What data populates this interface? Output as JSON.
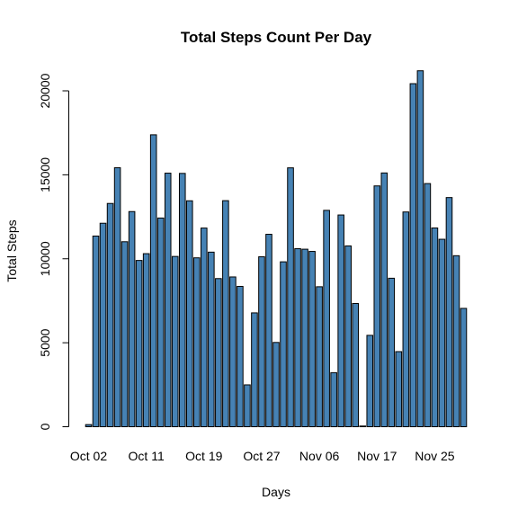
{
  "chart_data": {
    "type": "bar",
    "title": "Total Steps Count Per Day",
    "xlabel": "Days",
    "ylabel": "Total Steps",
    "ylim": [
      0,
      21500
    ],
    "yticks": [
      0,
      5000,
      10000,
      15000,
      20000
    ],
    "ytick_labels": [
      "0",
      "5000",
      "10000",
      "15000",
      "20000"
    ],
    "xtick_labels": [
      "Oct 02",
      "Oct 11",
      "Oct 19",
      "Oct 27",
      "Nov 06",
      "Nov 17",
      "Nov 25"
    ],
    "xtick_categories": [
      "2012-10-02",
      "2012-10-11",
      "2012-10-19",
      "2012-10-27",
      "2012-11-06",
      "2012-11-17",
      "2012-11-25"
    ],
    "bar_color": "#4682B4",
    "grid": false,
    "categories": [
      "2012-10-02",
      "2012-10-03",
      "2012-10-04",
      "2012-10-05",
      "2012-10-06",
      "2012-10-07",
      "2012-10-09",
      "2012-10-10",
      "2012-10-11",
      "2012-10-12",
      "2012-10-13",
      "2012-10-14",
      "2012-10-15",
      "2012-10-16",
      "2012-10-17",
      "2012-10-18",
      "2012-10-19",
      "2012-10-20",
      "2012-10-21",
      "2012-10-22",
      "2012-10-23",
      "2012-10-24",
      "2012-10-25",
      "2012-10-26",
      "2012-10-27",
      "2012-10-28",
      "2012-10-29",
      "2012-10-30",
      "2012-10-31",
      "2012-11-02",
      "2012-11-03",
      "2012-11-05",
      "2012-11-06",
      "2012-11-07",
      "2012-11-08",
      "2012-11-11",
      "2012-11-12",
      "2012-11-13",
      "2012-11-15",
      "2012-11-16",
      "2012-11-17",
      "2012-11-18",
      "2012-11-19",
      "2012-11-20",
      "2012-11-21",
      "2012-11-22",
      "2012-11-23",
      "2012-11-24",
      "2012-11-25",
      "2012-11-26",
      "2012-11-27",
      "2012-11-28",
      "2012-11-29"
    ],
    "values": [
      126,
      11352,
      12116,
      13294,
      15420,
      11015,
      12811,
      9900,
      10304,
      17382,
      12426,
      15098,
      10139,
      15084,
      13452,
      10056,
      11829,
      10395,
      8821,
      13460,
      8918,
      8355,
      2492,
      6778,
      10119,
      11458,
      5018,
      9819,
      15414,
      10600,
      10571,
      10439,
      8334,
      12883,
      3219,
      12608,
      10765,
      7336,
      41,
      5441,
      14339,
      15110,
      8841,
      4472,
      12787,
      20427,
      21194,
      14478,
      11834,
      11162,
      13646,
      10183,
      7047
    ]
  }
}
